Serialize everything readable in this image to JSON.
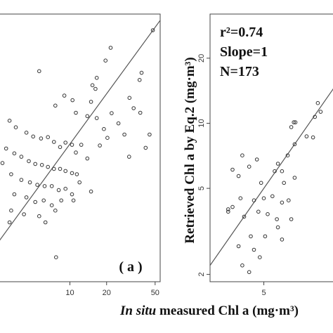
{
  "chart_data": [
    {
      "type": "scatter",
      "panel_label": "( a )",
      "x_scale": "log",
      "y_scale": "log",
      "xlim": [
        2.5,
        55
      ],
      "ylim": [
        1.5,
        60
      ],
      "x_ticks": [
        {
          "value": 10,
          "label": "10"
        },
        {
          "value": 20,
          "label": "20"
        },
        {
          "value": 50,
          "label": "50"
        }
      ],
      "fit_line": {
        "slope": 1,
        "intercept": 0
      },
      "points": [
        [
          47.9,
          48.0
        ],
        [
          21.6,
          37.7
        ],
        [
          19.6,
          31.6
        ],
        [
          14.9,
          17.9
        ],
        [
          15.3,
          22.5
        ],
        [
          16.2,
          21.4
        ],
        [
          16.6,
          24.9
        ],
        [
          38.7,
          26.7
        ],
        [
          37.3,
          24.2
        ],
        [
          30.8,
          18.9
        ],
        [
          33.3,
          16.4
        ],
        [
          37.8,
          15.4
        ],
        [
          5.6,
          27.3
        ],
        [
          7.6,
          17.0
        ],
        [
          9.0,
          19.5
        ],
        [
          10.5,
          18.3
        ],
        [
          11.2,
          15.4
        ],
        [
          13.9,
          14.7
        ],
        [
          16.6,
          14.3
        ],
        [
          22.0,
          15.3
        ],
        [
          25.0,
          13.3
        ],
        [
          28.0,
          11.4
        ],
        [
          19.0,
          12.3
        ],
        [
          20.3,
          10.9
        ],
        [
          17.6,
          9.8
        ],
        [
          30.6,
          8.4
        ],
        [
          41.8,
          9.5
        ],
        [
          45.0,
          11.4
        ],
        [
          3.2,
          13.8
        ],
        [
          3.6,
          12.6
        ],
        [
          4.4,
          11.7
        ],
        [
          5.0,
          11.1
        ],
        [
          5.8,
          10.8
        ],
        [
          6.6,
          11.0
        ],
        [
          7.4,
          10.3
        ],
        [
          8.3,
          9.6
        ],
        [
          9.2,
          10.2
        ],
        [
          10.4,
          9.9
        ],
        [
          11.2,
          8.9
        ],
        [
          12.4,
          9.9
        ],
        [
          13.9,
          8.2
        ],
        [
          3.0,
          9.4
        ],
        [
          3.5,
          8.8
        ],
        [
          4.0,
          8.4
        ],
        [
          4.6,
          7.9
        ],
        [
          5.2,
          7.6
        ],
        [
          5.9,
          7.5
        ],
        [
          6.6,
          7.3
        ],
        [
          7.4,
          7.1
        ],
        [
          8.3,
          7.1
        ],
        [
          9.2,
          6.9
        ],
        [
          10.4,
          6.7
        ],
        [
          11.4,
          6.6
        ],
        [
          2.8,
          7.7
        ],
        [
          3.3,
          6.6
        ],
        [
          4.0,
          6.1
        ],
        [
          4.7,
          5.9
        ],
        [
          5.4,
          5.7
        ],
        [
          6.2,
          5.6
        ],
        [
          7.1,
          5.6
        ],
        [
          8.1,
          5.3
        ],
        [
          9.2,
          5.4
        ],
        [
          10.4,
          5.0
        ],
        [
          12.0,
          5.9
        ],
        [
          14.9,
          5.2
        ],
        [
          3.5,
          5.0
        ],
        [
          4.4,
          4.8
        ],
        [
          5.2,
          4.5
        ],
        [
          6.1,
          4.6
        ],
        [
          7.1,
          4.3
        ],
        [
          8.5,
          4.6
        ],
        [
          10.7,
          4.6
        ],
        [
          3.3,
          4.0
        ],
        [
          4.2,
          3.8
        ],
        [
          5.6,
          3.7
        ],
        [
          7.6,
          4.0
        ],
        [
          6.3,
          3.4
        ],
        [
          3.2,
          3.4
        ],
        [
          7.7,
          2.1
        ]
      ]
    },
    {
      "type": "scatter",
      "x_scale": "log",
      "y_scale": "log",
      "ylabel": "Retrieved Chl a by Eq.2 (mg·m³)",
      "xlim": [
        2.2,
        16
      ],
      "ylim": [
        1.85,
        32
      ],
      "x_ticks": [
        {
          "value": 5,
          "label": "5"
        }
      ],
      "y_ticks": [
        {
          "value": 2,
          "label": "2"
        },
        {
          "value": 5,
          "label": "5"
        },
        {
          "value": 10,
          "label": "10"
        },
        {
          "value": 20,
          "label": "20"
        }
      ],
      "fit_line": {
        "slope": 1,
        "intercept": 0
      },
      "annotations": [
        "r²=0.74",
        "Slope=1",
        "N=173"
      ],
      "points": [
        [
          7.9,
          10.1
        ],
        [
          8.1,
          10.1
        ],
        [
          7.6,
          9.6
        ],
        [
          9.6,
          8.7
        ],
        [
          10.6,
          8.6
        ],
        [
          11.4,
          12.4
        ],
        [
          11.9,
          11.3
        ],
        [
          10.9,
          10.7
        ],
        [
          8.0,
          8.0
        ],
        [
          7.2,
          7.1
        ],
        [
          6.6,
          6.0
        ],
        [
          6.2,
          6.5
        ],
        [
          5.9,
          6.0
        ],
        [
          6.8,
          5.3
        ],
        [
          8.0,
          5.6
        ],
        [
          4.5,
          6.8
        ],
        [
          3.6,
          7.1
        ],
        [
          3.1,
          6.1
        ],
        [
          3.4,
          5.7
        ],
        [
          4.0,
          6.3
        ],
        [
          4.8,
          5.3
        ],
        [
          3.5,
          4.5
        ],
        [
          3.1,
          4.1
        ],
        [
          2.9,
          4.0
        ],
        [
          4.3,
          4.4
        ],
        [
          5.0,
          4.5
        ],
        [
          5.7,
          4.6
        ],
        [
          6.6,
          4.3
        ],
        [
          7.3,
          4.4
        ],
        [
          4.6,
          3.9
        ],
        [
          5.3,
          3.8
        ],
        [
          6.1,
          3.6
        ],
        [
          7.6,
          3.6
        ],
        [
          2.9,
          3.9
        ],
        [
          3.7,
          3.7
        ],
        [
          4.1,
          3.0
        ],
        [
          5.1,
          3.0
        ],
        [
          6.2,
          3.3
        ],
        [
          3.4,
          2.7
        ],
        [
          4.3,
          2.6
        ],
        [
          4.7,
          2.4
        ],
        [
          3.6,
          2.2
        ],
        [
          4.0,
          2.05
        ],
        [
          6.6,
          2.9
        ]
      ]
    }
  ],
  "x_axis_title": {
    "italic_part": "In situ",
    "rest": " measured Chl a (mg·m³)"
  }
}
